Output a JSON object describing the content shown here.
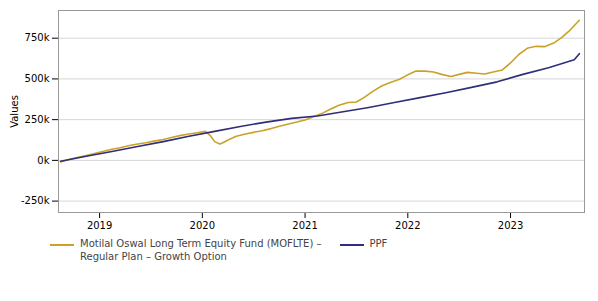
{
  "chart_data": {
    "type": "line",
    "ylabel": "Values",
    "xlim": [
      2018.6,
      2023.72
    ],
    "xticks": [
      2019,
      2020,
      2021,
      2022,
      2023
    ],
    "ylim": [
      -320000,
      920000
    ],
    "yticks": [
      {
        "value": -250000,
        "label": "-250k"
      },
      {
        "value": 0,
        "label": "0k"
      },
      {
        "value": 250000,
        "label": "250k"
      },
      {
        "value": 500000,
        "label": "500k"
      },
      {
        "value": 750000,
        "label": "750k"
      }
    ],
    "grid": true,
    "legend": "bottom",
    "series": [
      {
        "name": "Motilal Oswal Long Term Equity Fund (MOFLTE) –\nRegular Plan – Growth Option",
        "color": "#c9a227",
        "x": [
          2018.62,
          2018.7,
          2018.78,
          2018.87,
          2018.95,
          2019.03,
          2019.12,
          2019.2,
          2019.28,
          2019.37,
          2019.45,
          2019.53,
          2019.62,
          2019.7,
          2019.78,
          2019.87,
          2019.95,
          2020.03,
          2020.08,
          2020.12,
          2020.17,
          2020.2,
          2020.25,
          2020.33,
          2020.42,
          2020.5,
          2020.58,
          2020.67,
          2020.75,
          2020.83,
          2020.92,
          2021.0,
          2021.08,
          2021.17,
          2021.25,
          2021.33,
          2021.42,
          2021.5,
          2021.58,
          2021.67,
          2021.75,
          2021.83,
          2021.92,
          2022.0,
          2022.08,
          2022.17,
          2022.25,
          2022.33,
          2022.42,
          2022.5,
          2022.58,
          2022.67,
          2022.75,
          2022.83,
          2022.92,
          2023.0,
          2023.08,
          2023.17,
          2023.25,
          2023.33,
          2023.42,
          2023.5,
          2023.58,
          2023.67
        ],
        "values": [
          -10000,
          5000,
          18000,
          30000,
          42000,
          55000,
          68000,
          78000,
          90000,
          100000,
          108000,
          118000,
          128000,
          140000,
          152000,
          162000,
          170000,
          178000,
          150000,
          115000,
          100000,
          108000,
          125000,
          148000,
          162000,
          172000,
          182000,
          195000,
          210000,
          222000,
          235000,
          248000,
          268000,
          290000,
          315000,
          338000,
          355000,
          358000,
          388000,
          428000,
          458000,
          478000,
          498000,
          525000,
          548000,
          548000,
          542000,
          528000,
          515000,
          528000,
          540000,
          535000,
          530000,
          542000,
          555000,
          598000,
          650000,
          690000,
          700000,
          698000,
          720000,
          755000,
          800000,
          860000
        ]
      },
      {
        "name": "PPF",
        "color": "#2e2e7a",
        "x": [
          2018.62,
          2018.87,
          2019.12,
          2019.37,
          2019.62,
          2019.87,
          2020.12,
          2020.37,
          2020.62,
          2020.87,
          2021.12,
          2021.37,
          2021.62,
          2021.87,
          2022.12,
          2022.37,
          2022.62,
          2022.87,
          2023.12,
          2023.37,
          2023.62,
          2023.67
        ],
        "values": [
          -5000,
          25000,
          55000,
          85000,
          115000,
          148000,
          178000,
          208000,
          235000,
          258000,
          272000,
          298000,
          325000,
          355000,
          385000,
          415000,
          448000,
          482000,
          528000,
          568000,
          618000,
          655000
        ]
      }
    ]
  }
}
